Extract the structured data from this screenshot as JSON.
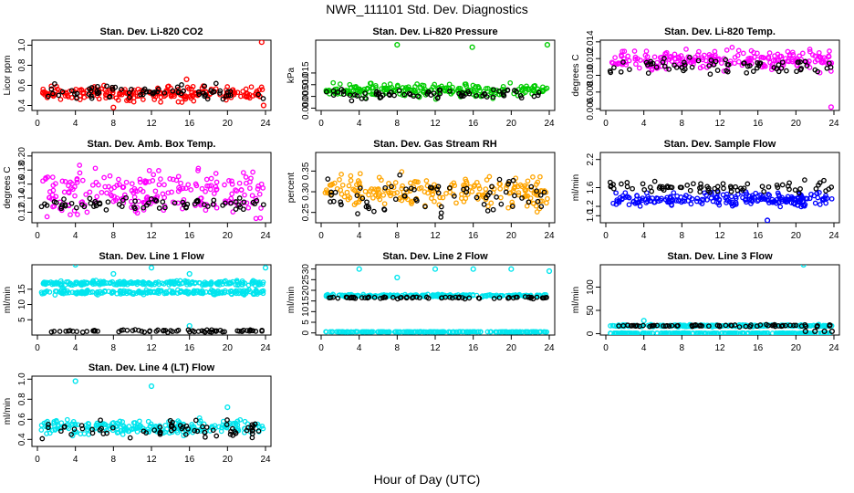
{
  "page": {
    "title": "NWR_111101  Std. Dev. Diagnostics",
    "xlabel": "Hour of Day (UTC)"
  },
  "chart_data": [
    {
      "type": "scatter",
      "title": "Stan. Dev. Li-820 CO2",
      "xlabel": "",
      "ylabel": "Licor ppm",
      "xlim": [
        0,
        24
      ],
      "ylim": [
        0.35,
        1.05
      ],
      "xticks": [
        0,
        4,
        8,
        12,
        16,
        20,
        24
      ],
      "yticks": [
        0.4,
        0.6,
        0.8,
        1.0
      ],
      "ytick_labels": [
        "0.4",
        "0.6",
        "0.8",
        "1.0"
      ],
      "series": [
        {
          "name": "sample",
          "color": "#ff0000",
          "baseline": 0.52,
          "spread": 0.05,
          "points": [
            [
              8,
              0.38
            ],
            [
              15.7,
              0.66
            ],
            [
              23.6,
              1.03
            ],
            [
              23.8,
              0.4
            ]
          ]
        },
        {
          "name": "reference",
          "color": "#000000",
          "baseline": 0.53,
          "spread": 0.05,
          "points": []
        }
      ]
    },
    {
      "type": "scatter",
      "title": "Stan. Dev. Li-820 Pressure",
      "xlabel": "",
      "ylabel": "kPa",
      "xlim": [
        0,
        24
      ],
      "ylim": [
        -0.001,
        0.029
      ],
      "xticks": [
        0,
        4,
        8,
        12,
        16,
        20,
        24
      ],
      "yticks": [
        0.0,
        0.005,
        0.01,
        0.015
      ],
      "ytick_labels": [
        "0.000",
        "0.005",
        "0.010",
        "0.015"
      ],
      "series": [
        {
          "name": "sample",
          "color": "#00cc00",
          "baseline": 0.0075,
          "spread": 0.002,
          "points": [
            [
              8,
              0.027
            ],
            [
              15.9,
              0.026
            ],
            [
              23.8,
              0.027
            ]
          ]
        },
        {
          "name": "reference",
          "color": "#000000",
          "baseline": 0.006,
          "spread": 0.0015,
          "points": []
        }
      ]
    },
    {
      "type": "scatter",
      "title": "Stan. Dev. Li-820 Temp.",
      "xlabel": "",
      "ylabel": "degrees C",
      "xlim": [
        0,
        24
      ],
      "ylim": [
        0.0058,
        0.0142
      ],
      "xticks": [
        0,
        4,
        8,
        12,
        16,
        20,
        24
      ],
      "yticks": [
        0.006,
        0.008,
        0.01,
        0.012,
        0.014
      ],
      "ytick_labels": [
        "0.006",
        "0.008",
        "0.010",
        "0.012",
        "0.014"
      ],
      "series": [
        {
          "name": "sample",
          "color": "#ff00ff",
          "baseline": 0.0118,
          "spread": 0.0008,
          "points": [
            [
              23.7,
              0.0062
            ]
          ]
        },
        {
          "name": "reference",
          "color": "#000000",
          "baseline": 0.0112,
          "spread": 0.0007,
          "points": []
        }
      ]
    },
    {
      "type": "scatter",
      "title": "Stan. Dev. Amb. Box Temp.",
      "xlabel": "",
      "ylabel": "degrees C",
      "xlim": [
        0,
        24
      ],
      "ylim": [
        0.105,
        0.205
      ],
      "xticks": [
        0,
        4,
        8,
        12,
        16,
        20,
        24
      ],
      "yticks": [
        0.12,
        0.14,
        0.16,
        0.18,
        0.2
      ],
      "ytick_labels": [
        "0.12",
        "0.14",
        "0.16",
        "0.18",
        "0.20"
      ],
      "series": [
        {
          "name": "sample",
          "color": "#ff00ff",
          "baseline": 0.148,
          "spread": 0.022,
          "points": []
        },
        {
          "name": "reference",
          "color": "#000000",
          "baseline": 0.132,
          "spread": 0.006,
          "points": []
        }
      ]
    },
    {
      "type": "scatter",
      "title": "Stan. Dev. Gas Stream RH",
      "xlabel": "",
      "ylabel": "percent",
      "xlim": [
        0,
        24
      ],
      "ylim": [
        0.225,
        0.395
      ],
      "xticks": [
        0,
        4,
        8,
        12,
        16,
        20,
        24
      ],
      "yticks": [
        0.25,
        0.3,
        0.35
      ],
      "ytick_labels": [
        "0.25",
        "0.30",
        "0.35"
      ],
      "series": [
        {
          "name": "sample",
          "color": "#ffa500",
          "baseline": 0.3,
          "spread": 0.025,
          "points": []
        },
        {
          "name": "reference",
          "color": "#000000",
          "baseline": 0.29,
          "spread": 0.03,
          "points": []
        }
      ]
    },
    {
      "type": "scatter",
      "title": "Stan. Dev. Sample Flow",
      "xlabel": "",
      "ylabel": "ml/min",
      "xlim": [
        0,
        24
      ],
      "ylim": [
        0.85,
        2.35
      ],
      "xticks": [
        0,
        4,
        8,
        12,
        16,
        20,
        24
      ],
      "yticks": [
        1.0,
        1.2,
        1.6,
        2.2
      ],
      "ytick_labels": [
        "1.0",
        "1.2",
        "1.6",
        "2.2"
      ],
      "series": [
        {
          "name": "sample",
          "color": "#0000ff",
          "baseline": 1.35,
          "spread": 0.1,
          "points": [
            [
              17,
              0.9
            ]
          ]
        },
        {
          "name": "reference",
          "color": "#000000",
          "baseline": 1.6,
          "spread": 0.1,
          "points": []
        }
      ]
    },
    {
      "type": "scatter",
      "title": "Stan. Dev. Line 1 Flow",
      "xlabel": "",
      "ylabel": "ml/min",
      "xlim": [
        0,
        24
      ],
      "ylim": [
        0,
        23
      ],
      "xticks": [
        0,
        4,
        8,
        12,
        16,
        20,
        24
      ],
      "yticks": [
        5,
        10,
        15
      ],
      "ytick_labels": [
        "5",
        "10",
        "15"
      ],
      "series": [
        {
          "name": "line-upper",
          "color": "#00e5ee",
          "baseline": 17,
          "spread": 0.5,
          "points": [
            [
              4,
              23
            ],
            [
              8,
              20
            ],
            [
              12,
              22
            ],
            [
              16,
              20
            ],
            [
              24,
              22
            ]
          ]
        },
        {
          "name": "line-lower",
          "color": "#00e5ee",
          "baseline": 14,
          "spread": 0.5,
          "points": [
            [
              16,
              3
            ]
          ]
        },
        {
          "name": "reference",
          "color": "#000000",
          "baseline": 1.3,
          "spread": 0.3,
          "points": []
        }
      ]
    },
    {
      "type": "scatter",
      "title": "Stan. Dev. Line 2 Flow",
      "xlabel": "",
      "ylabel": "ml/min",
      "xlim": [
        0,
        24
      ],
      "ylim": [
        -1,
        32
      ],
      "xticks": [
        0,
        4,
        8,
        12,
        16,
        20,
        24
      ],
      "yticks": [
        0,
        5,
        10,
        15,
        20,
        25,
        30
      ],
      "ytick_labels": [
        "0",
        "5",
        "10",
        "15",
        "20",
        "25",
        "30"
      ],
      "series": [
        {
          "name": "sample",
          "color": "#00e5ee",
          "baseline": 17.5,
          "spread": 0.4,
          "points": [
            [
              4,
              30
            ],
            [
              8,
              26
            ],
            [
              12,
              30
            ],
            [
              16,
              30
            ],
            [
              20,
              30
            ],
            [
              24,
              29
            ]
          ]
        },
        {
          "name": "baseline",
          "color": "#00e5ee",
          "baseline": 0.5,
          "spread": 0.1,
          "points": []
        },
        {
          "name": "reference",
          "color": "#000000",
          "baseline": 16.5,
          "spread": 0.3,
          "points": []
        }
      ]
    },
    {
      "type": "scatter",
      "title": "Stan. Dev. Line 3 Flow",
      "xlabel": "",
      "ylabel": "ml/min",
      "xlim": [
        0,
        24
      ],
      "ylim": [
        -3,
        148
      ],
      "xticks": [
        0,
        4,
        8,
        12,
        16,
        20,
        24
      ],
      "yticks": [
        0,
        50,
        100
      ],
      "ytick_labels": [
        "0",
        "50",
        "100"
      ],
      "series": [
        {
          "name": "sample",
          "color": "#00e5ee",
          "baseline": 17,
          "spread": 1.5,
          "points": [
            [
              4,
              28
            ],
            [
              20.8,
              148
            ]
          ]
        },
        {
          "name": "baseline",
          "color": "#00e5ee",
          "baseline": 1,
          "spread": 0.5,
          "points": []
        },
        {
          "name": "reference",
          "color": "#000000",
          "baseline": 17,
          "spread": 1.5,
          "points": [
            [
              21,
              5
            ],
            [
              22,
              5
            ],
            [
              23,
              5
            ],
            [
              23.8,
              5
            ]
          ]
        }
      ]
    },
    {
      "type": "scatter",
      "title": "Stan. Dev. Line 4 (LT) Flow",
      "xlabel": "",
      "ylabel": "ml/min",
      "xlim": [
        0,
        24
      ],
      "ylim": [
        0.33,
        1.03
      ],
      "xticks": [
        0,
        4,
        8,
        12,
        16,
        20,
        24
      ],
      "yticks": [
        0.4,
        0.6,
        0.8,
        1.0
      ],
      "ytick_labels": [
        "0.4",
        "0.6",
        "0.8",
        "1.0"
      ],
      "series": [
        {
          "name": "sample",
          "color": "#00e5ee",
          "baseline": 0.52,
          "spread": 0.05,
          "points": [
            [
              4,
              0.98
            ],
            [
              12,
              0.93
            ],
            [
              20,
              0.72
            ]
          ]
        },
        {
          "name": "reference",
          "color": "#000000",
          "baseline": 0.5,
          "spread": 0.06,
          "points": []
        }
      ]
    }
  ]
}
